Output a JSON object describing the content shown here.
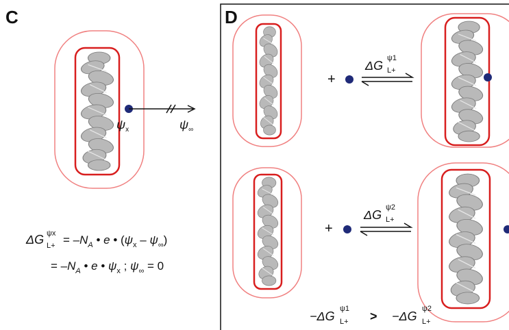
{
  "panel_c": {
    "label": "C",
    "psi_x": [
      "ψ",
      "x"
    ],
    "psi_inf": [
      "ψ",
      "∞"
    ],
    "equation": [
      [
        "ΔG",
        "ψx",
        "L+",
        "= –",
        "N",
        "A",
        " • ",
        "e",
        " • (",
        "ψ",
        "x",
        " – ",
        "ψ",
        "∞",
        ")"
      ],
      [
        "= –",
        "N",
        "A",
        " • ",
        "e",
        " •  ",
        "ψ",
        "x",
        " ; ",
        "ψ",
        "∞",
        " = 0"
      ]
    ]
  },
  "panel_d": {
    "label": "D",
    "reaction_1": {
      "plus": "+",
      "energy": [
        "ΔG",
        "ψ1",
        "L+"
      ]
    },
    "reaction_2": {
      "plus": "+",
      "energy": [
        "ΔG",
        "ψ2",
        "L+"
      ]
    },
    "comparison": [
      "−ΔG",
      "ψ1",
      "L+",
      ">",
      "−ΔG",
      "ψ2",
      "L+"
    ]
  }
}
